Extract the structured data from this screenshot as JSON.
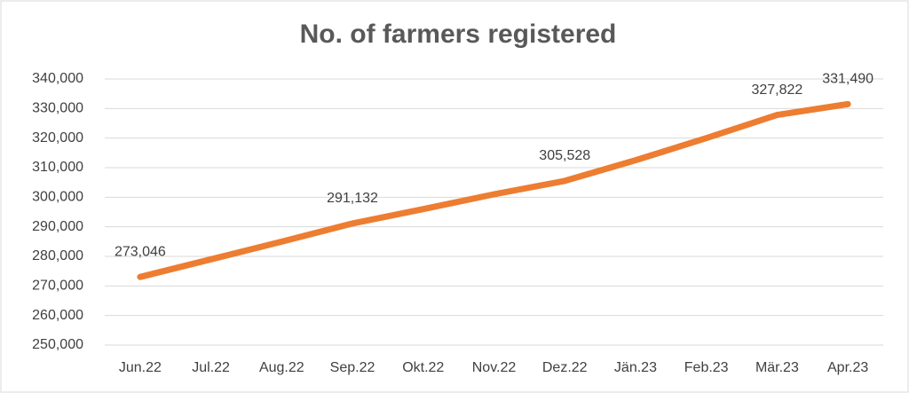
{
  "chart_data": {
    "type": "line",
    "title": "No. of farmers registered",
    "categories": [
      "Jun.22",
      "Jul.22",
      "Aug.22",
      "Sep.22",
      "Okt.22",
      "Nov.22",
      "Dez.22",
      "Jän.23",
      "Feb.23",
      "Mär.23",
      "Apr.23"
    ],
    "values": [
      273046,
      279000,
      285000,
      291132,
      296000,
      301000,
      305528,
      312500,
      320000,
      327822,
      331490
    ],
    "value_labels": [
      "273,046",
      null,
      null,
      "291,132",
      null,
      null,
      "305,528",
      null,
      null,
      "327,822",
      "331,490"
    ],
    "color": "#ed7d31",
    "ylim": [
      250000,
      340000
    ],
    "yticks": [
      {
        "value": 250000,
        "label": "250,000"
      },
      {
        "value": 260000,
        "label": "260,000"
      },
      {
        "value": 270000,
        "label": "270,000"
      },
      {
        "value": 280000,
        "label": "280,000"
      },
      {
        "value": 290000,
        "label": "290,000"
      },
      {
        "value": 300000,
        "label": "300,000"
      },
      {
        "value": 310000,
        "label": "310,000"
      },
      {
        "value": 320000,
        "label": "320,000"
      },
      {
        "value": 330000,
        "label": "330,000"
      },
      {
        "value": 340000,
        "label": "340,000"
      }
    ],
    "grid": true
  }
}
